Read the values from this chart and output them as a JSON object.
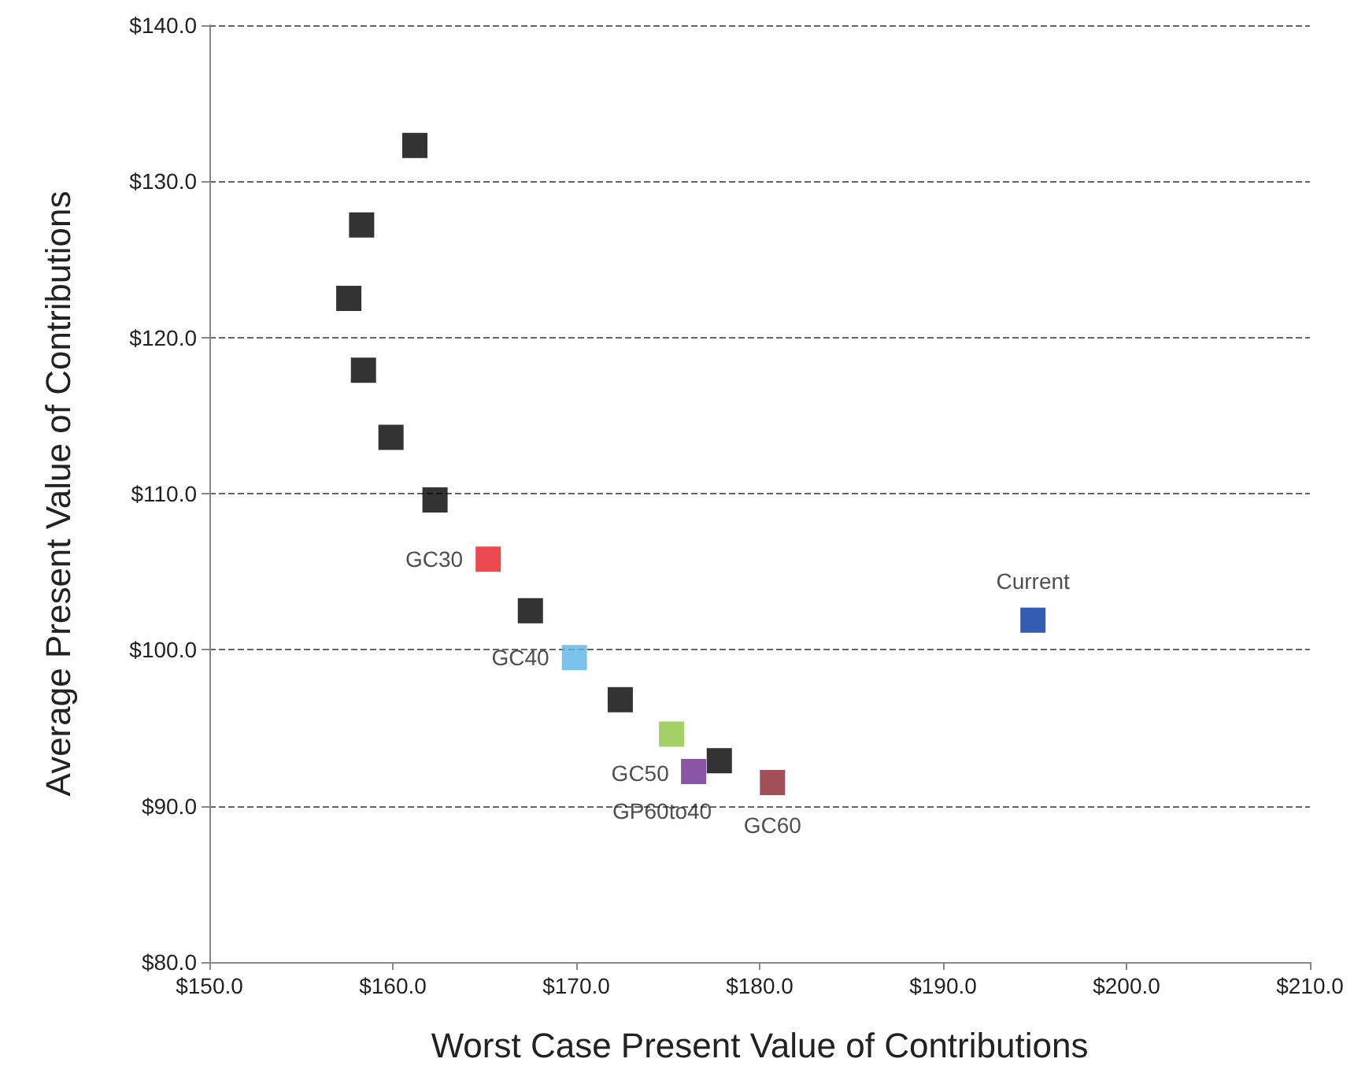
{
  "chart_data": {
    "type": "scatter",
    "xlabel": "Worst Case Present Value of Contributions",
    "ylabel": "Average Present Value of Contributions",
    "xlim": [
      150,
      210
    ],
    "ylim": [
      80,
      140
    ],
    "xticks": [
      {
        "value": 150,
        "label": "$150.0"
      },
      {
        "value": 160,
        "label": "$160.0"
      },
      {
        "value": 170,
        "label": "$170.0"
      },
      {
        "value": 180,
        "label": "$180.0"
      },
      {
        "value": 190,
        "label": "$190.0"
      },
      {
        "value": 200,
        "label": "$200.0"
      },
      {
        "value": 210,
        "label": "$210.0"
      }
    ],
    "yticks": [
      {
        "value": 80,
        "label": "$80.0"
      },
      {
        "value": 90,
        "label": "$90.0"
      },
      {
        "value": 100,
        "label": "$100.0"
      },
      {
        "value": 110,
        "label": "$110.0"
      },
      {
        "value": 120,
        "label": "$120.0"
      },
      {
        "value": 130,
        "label": "$130.0"
      },
      {
        "value": 140,
        "label": "$140.0"
      }
    ],
    "grid": "y",
    "legend": false,
    "marker": "square",
    "series": [
      {
        "color": "#000000",
        "x": [
          161.2,
          158.3,
          157.6,
          158.4,
          159.9,
          162.3,
          167.5,
          172.4,
          177.8
        ],
        "values": [
          132.3,
          127.2,
          122.5,
          117.9,
          113.6,
          109.6,
          102.5,
          96.8,
          92.9
        ]
      },
      {
        "name": "GC30",
        "color": "#e31b23",
        "x": [
          165.2
        ],
        "values": [
          105.8
        ]
      },
      {
        "name": "GC40",
        "color": "#5ab4e5",
        "x": [
          169.9
        ],
        "values": [
          99.5
        ]
      },
      {
        "name": "GC50",
        "color": "#8cc63f",
        "x": [
          175.2
        ],
        "values": [
          94.6
        ]
      },
      {
        "name": "GP60to40",
        "color": "#6a2c8e",
        "x": [
          176.4
        ],
        "values": [
          92.2
        ]
      },
      {
        "name": "GC60",
        "color": "#8b2331",
        "x": [
          180.7
        ],
        "values": [
          91.5
        ]
      },
      {
        "name": "Current",
        "color": "#0033a0",
        "x": [
          194.9
        ],
        "values": [
          101.9
        ]
      }
    ]
  }
}
